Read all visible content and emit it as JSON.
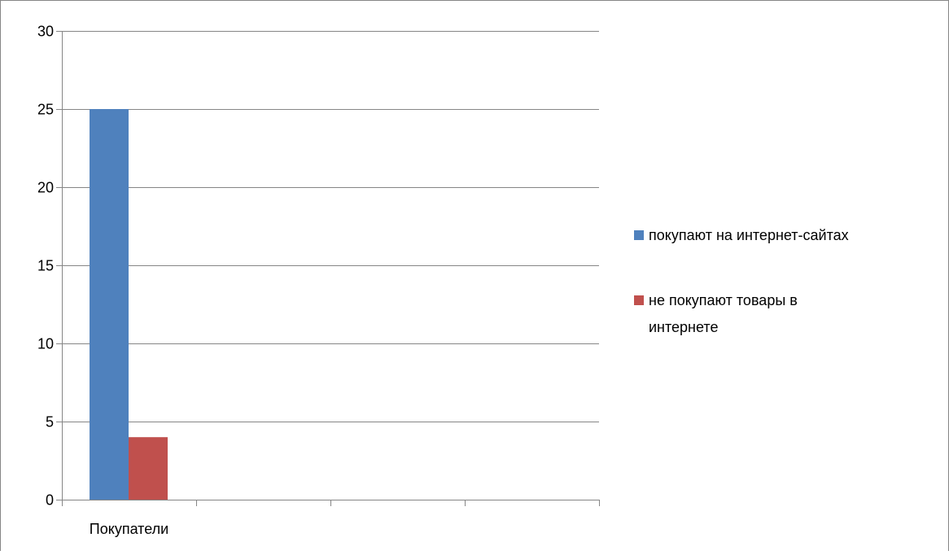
{
  "chart_data": {
    "type": "bar",
    "categories": [
      "Покупатели",
      "",
      "",
      ""
    ],
    "series": [
      {
        "name": "покупают на интернет-сайтах",
        "values": [
          25,
          null,
          null,
          null
        ],
        "color": "#4F81BD"
      },
      {
        "name": "не покупают товары в интернете",
        "values": [
          4,
          null,
          null,
          null
        ],
        "color": "#C0504D"
      }
    ],
    "y_ticks": [
      "0",
      "5",
      "10",
      "15",
      "20",
      "25",
      "30"
    ],
    "ylim": [
      0,
      30
    ],
    "grid": true,
    "legend_position": "right",
    "legend_lines": [
      [
        "покупают на интернет-сайтах"
      ],
      [
        "не покупают товары в",
        "интернете"
      ]
    ],
    "colors": {
      "grid": "#868686",
      "axis": "#868686",
      "frame": "#868686"
    }
  }
}
